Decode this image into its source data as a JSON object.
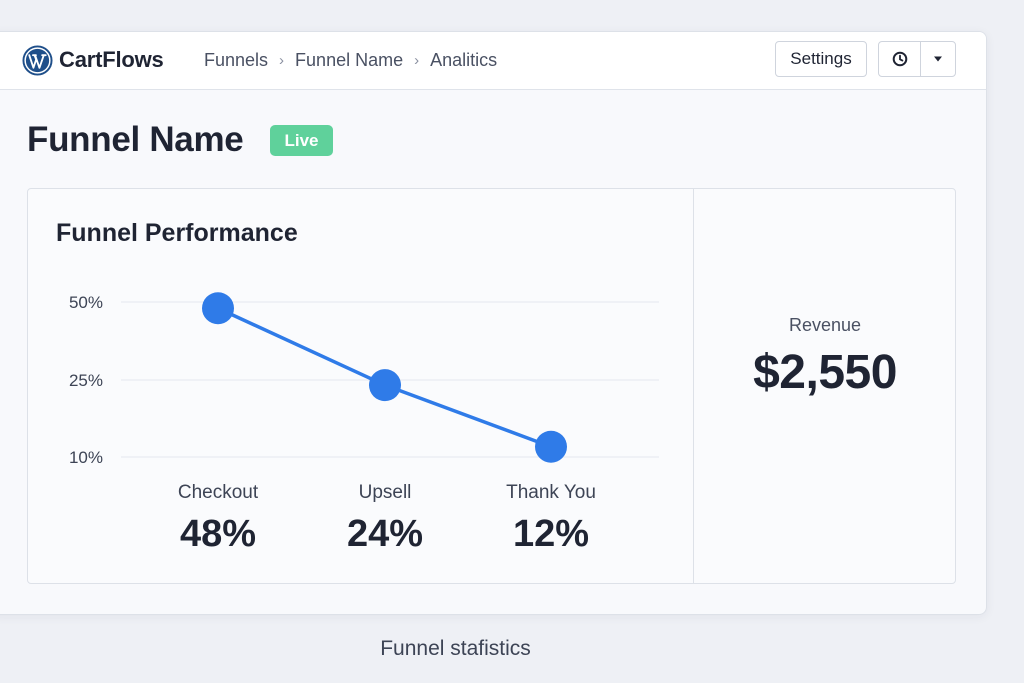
{
  "brand": {
    "name": "CartFlows",
    "logo_icon": "wordpress-logo-icon"
  },
  "breadcrumb": [
    "Funnels",
    "Funnel Name",
    "Analitics"
  ],
  "toolbar": {
    "settings_label": "Settings",
    "history_icon": "clock-icon",
    "dropdown_icon": "caret-down-icon"
  },
  "page": {
    "title": "Funnel Name",
    "status": "Live",
    "status_color": "#5fd19b"
  },
  "performance": {
    "title": "Funnel Performance"
  },
  "chart_data": {
    "type": "line",
    "title": "Funnel Performance",
    "y_ticks": [
      "50%",
      "25%",
      "10%"
    ],
    "y_tick_values": [
      50,
      25,
      10
    ],
    "categories": [
      "Checkout",
      "Upsell",
      "Thank You"
    ],
    "values": [
      48,
      24,
      12
    ],
    "value_labels": [
      "48%",
      "24%",
      "12%"
    ],
    "line_color": "#2f7be8",
    "grid": true
  },
  "revenue": {
    "label": "Revenue",
    "value": "$2,550"
  },
  "caption": "Funnel stafistics"
}
